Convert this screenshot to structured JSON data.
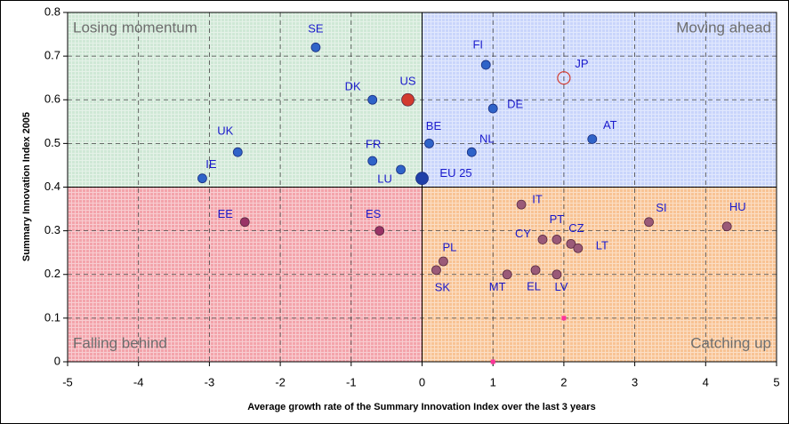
{
  "chart_data": {
    "type": "scatter",
    "xlabel": "Average growth rate of the Summary Innovation Index over the last 3 years",
    "ylabel": "Summary Innovation Index 2005",
    "xlim": [
      -5,
      5
    ],
    "ylim": [
      0,
      0.8
    ],
    "xticks": [
      -5,
      -4,
      -3,
      -2,
      -1,
      0,
      1,
      2,
      3,
      4,
      5
    ],
    "yticks": [
      0,
      0.1,
      0.2,
      0.3,
      0.4,
      0.5,
      0.6,
      0.7,
      0.8
    ],
    "grid": true,
    "quadrants": [
      {
        "label": "Losing momentum",
        "x": [
          -5,
          0
        ],
        "y": [
          0.4,
          0.8
        ],
        "color": "#cfe8d6"
      },
      {
        "label": "Moving ahead",
        "x": [
          0,
          5
        ],
        "y": [
          0.4,
          0.8
        ],
        "color": "#c9d5fb"
      },
      {
        "label": "Falling behind",
        "x": [
          -5,
          0
        ],
        "y": [
          0,
          0.4
        ],
        "color": "#f3a4ab"
      },
      {
        "label": "Catching up",
        "x": [
          0,
          5
        ],
        "y": [
          0,
          0.4
        ],
        "color": "#f8c394"
      }
    ],
    "labels": [
      "SE",
      "DK",
      "US",
      "UK",
      "IE",
      "FR",
      "LU",
      "EU 25",
      "BE",
      "NL",
      "DE",
      "FI",
      "JP",
      "AT",
      "EE",
      "ES",
      "IT",
      "PT",
      "CZ",
      "CY",
      "LT",
      "SI",
      "HU",
      "PL",
      "SK",
      "MT",
      "EL",
      "LV",
      null,
      null
    ],
    "x": [
      -1.5,
      -0.7,
      -0.2,
      -2.6,
      -3.1,
      -0.7,
      -0.3,
      0,
      0.1,
      0.7,
      1.0,
      0.9,
      2.0,
      2.4,
      -2.5,
      -0.6,
      1.4,
      1.9,
      2.1,
      1.7,
      2.2,
      3.2,
      4.3,
      0.3,
      0.2,
      1.2,
      1.6,
      1.9,
      2.0,
      1.0
    ],
    "y": [
      0.72,
      0.6,
      0.6,
      0.48,
      0.42,
      0.46,
      0.44,
      0.42,
      0.5,
      0.48,
      0.58,
      0.68,
      0.65,
      0.51,
      0.32,
      0.3,
      0.36,
      0.28,
      0.27,
      0.28,
      0.26,
      0.32,
      0.31,
      0.23,
      0.21,
      0.2,
      0.21,
      0.2,
      0.1,
      0
    ],
    "colors": [
      "#2f63c8",
      "#2f63c8",
      "#d23a2e",
      "#2f63c8",
      "#2f63c8",
      "#2f63c8",
      "#2f63c8",
      "#1f3fa8",
      "#2f63c8",
      "#2f63c8",
      "#2f63c8",
      "#2f63c8",
      "#d23a2e",
      "#2f63c8",
      "#993366",
      "#993366",
      "#9a5a78",
      "#9a5a78",
      "#9a5a78",
      "#9a5a78",
      "#9a5a78",
      "#9a5a78",
      "#9a5a78",
      "#9a5a78",
      "#9a5a78",
      "#9a5a78",
      "#9a5a78",
      "#9a5a78",
      "#ff3399",
      "#ff3399"
    ]
  }
}
